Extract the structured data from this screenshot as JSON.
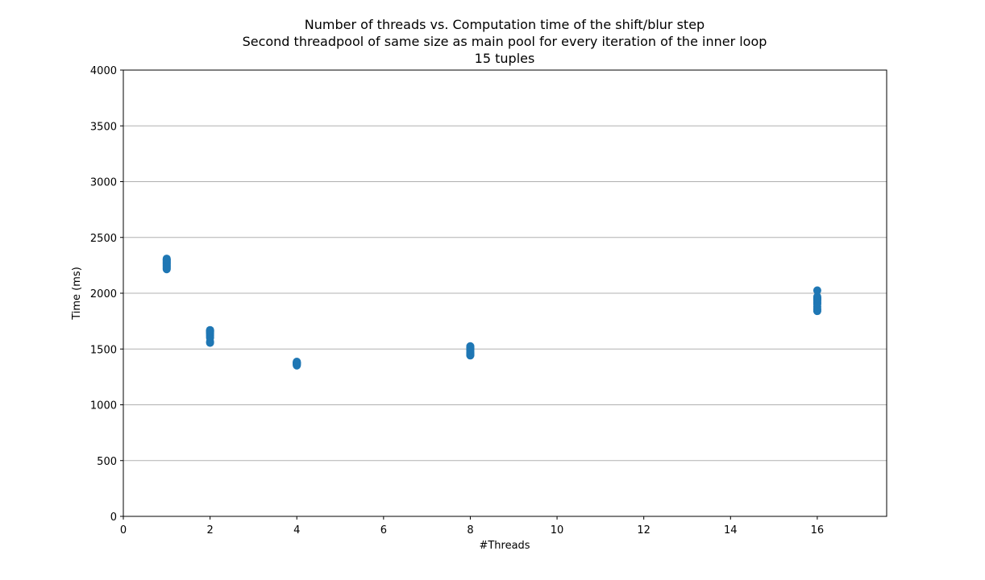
{
  "chart_data": {
    "type": "scatter",
    "title": [
      "Number of threads vs. Computation time of the shift/blur step",
      "Second threadpool of same size as main pool for every iteration of the inner loop",
      "15 tuples"
    ],
    "xlabel": "#Threads",
    "ylabel": "Time (ms)",
    "xlim": [
      0,
      17.6
    ],
    "ylim": [
      0,
      4000
    ],
    "xticks": [
      0,
      2,
      4,
      6,
      8,
      10,
      12,
      14,
      16
    ],
    "yticks": [
      0,
      500,
      1000,
      1500,
      2000,
      2500,
      3000,
      3500,
      4000
    ],
    "grid": "horizontal",
    "marker_color": "#1f77b4",
    "series": [
      {
        "x": [
          1,
          1,
          1,
          1,
          1,
          1,
          1,
          1,
          1,
          1,
          1,
          1,
          1,
          1,
          1,
          2,
          2,
          2,
          2,
          2,
          2,
          2,
          2,
          2,
          2,
          2,
          2,
          2,
          2,
          2,
          4,
          4,
          4,
          4,
          4,
          4,
          4,
          4,
          4,
          4,
          4,
          4,
          4,
          4,
          4,
          8,
          8,
          8,
          8,
          8,
          8,
          8,
          8,
          8,
          8,
          8,
          8,
          8,
          8,
          8,
          16,
          16,
          16,
          16,
          16,
          16,
          16,
          16,
          16,
          16,
          16,
          16,
          16,
          16,
          16
        ],
        "y": [
          2215,
          2222,
          2230,
          2238,
          2245,
          2250,
          2258,
          2265,
          2272,
          2280,
          2285,
          2292,
          2298,
          2303,
          2310,
          1555,
          1565,
          1600,
          1610,
          1620,
          1630,
          1640,
          1645,
          1650,
          1655,
          1660,
          1662,
          1665,
          1668,
          1670,
          1352,
          1356,
          1360,
          1363,
          1366,
          1368,
          1370,
          1372,
          1374,
          1376,
          1378,
          1380,
          1382,
          1384,
          1386,
          1442,
          1446,
          1450,
          1455,
          1460,
          1465,
          1470,
          1480,
          1490,
          1500,
          1505,
          1510,
          1515,
          1520,
          1525,
          1840,
          1850,
          1860,
          1880,
          1900,
          1910,
          1920,
          1930,
          1940,
          1945,
          1950,
          1955,
          1960,
          1970,
          2025
        ]
      }
    ]
  }
}
